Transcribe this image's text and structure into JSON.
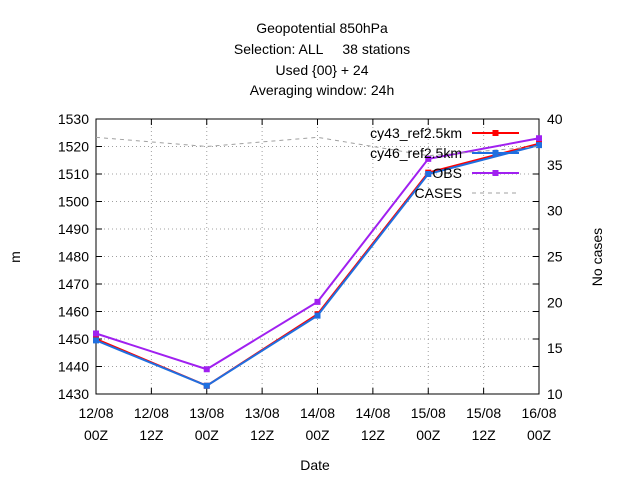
{
  "chart_data": {
    "type": "line",
    "title_lines": [
      "Geopotential 850hPa",
      "Selection: ALL     38 stations",
      "Used {00} + 24",
      "Averaging window: 24h"
    ],
    "xlabel": "Date",
    "ylabel": "m",
    "y2label": "No cases",
    "x_ticks": [
      [
        "12/08",
        "00Z"
      ],
      [
        "12/08",
        "12Z"
      ],
      [
        "13/08",
        "00Z"
      ],
      [
        "13/08",
        "12Z"
      ],
      [
        "14/08",
        "00Z"
      ],
      [
        "14/08",
        "12Z"
      ],
      [
        "15/08",
        "00Z"
      ],
      [
        "15/08",
        "12Z"
      ],
      [
        "16/08",
        "00Z"
      ]
    ],
    "x": [
      0,
      24,
      48,
      72,
      96
    ],
    "xlim": [
      0,
      96
    ],
    "ylim": [
      1430,
      1530
    ],
    "yticks": [
      1430,
      1440,
      1450,
      1460,
      1470,
      1480,
      1490,
      1500,
      1510,
      1520,
      1530
    ],
    "y2lim": [
      10,
      40
    ],
    "y2ticks": [
      10,
      15,
      20,
      25,
      30,
      35,
      40
    ],
    "grid": true,
    "legend_position": "top-right",
    "series": [
      {
        "name": "cy43_ref2.5km",
        "axis": "y",
        "color": "#ff0000",
        "marker": "square",
        "dash": false,
        "values": [
          1450.0,
          1433.0,
          1459.0,
          1510.5,
          1521.0
        ]
      },
      {
        "name": "cy46_ref2.5km",
        "axis": "y",
        "color": "#1f6fe0",
        "marker": "square",
        "dash": false,
        "values": [
          1449.5,
          1433.0,
          1458.5,
          1510.0,
          1520.5
        ]
      },
      {
        "name": "OBS",
        "axis": "y",
        "color": "#a020f0",
        "marker": "square",
        "dash": false,
        "values": [
          1452.0,
          1439.0,
          1463.5,
          1515.5,
          1523.0
        ]
      },
      {
        "name": "CASES",
        "axis": "y2",
        "color": "#a0a0a0",
        "marker": "none",
        "dash": true,
        "values": [
          38,
          37,
          38,
          36,
          37
        ]
      }
    ]
  }
}
